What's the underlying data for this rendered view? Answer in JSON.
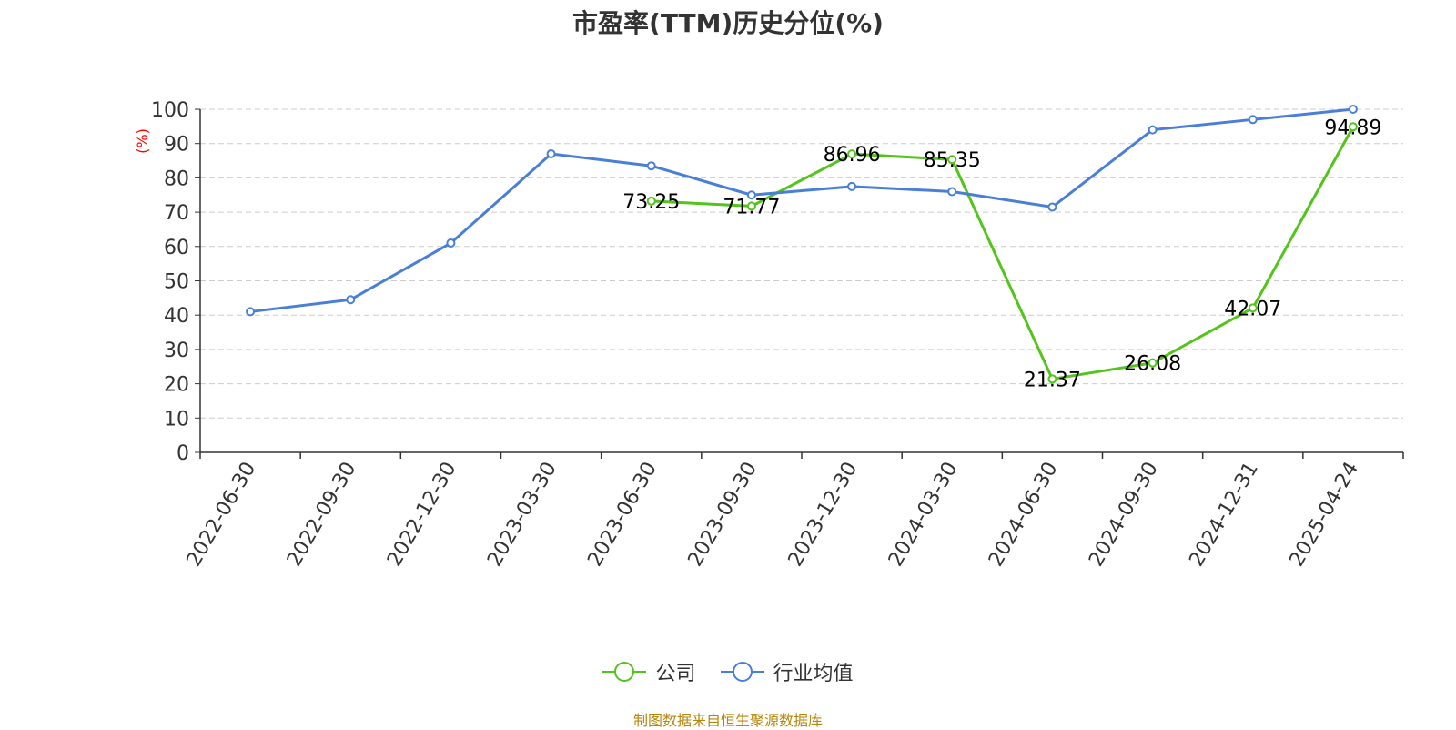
{
  "title": "市盈率(TTM)历史分位(%)",
  "footer": "制图数据来自恒生聚源数据库",
  "colors": {
    "company": "#52c41a",
    "industry": "#4a7fd8",
    "axis": "#333333",
    "grid": "#cccccc",
    "unit": "#ff0000",
    "footer": "#b8860b"
  },
  "chart_data": {
    "type": "line",
    "title": "市盈率(TTM)历史分位(%)",
    "ylabel": "(%)",
    "xlabel": "",
    "ylim": [
      0,
      100
    ],
    "yticks": [
      0,
      10,
      20,
      30,
      40,
      50,
      60,
      70,
      80,
      90,
      100
    ],
    "grid": true,
    "legend_position": "bottom",
    "categories": [
      "2022-06-30",
      "2022-09-30",
      "2022-12-30",
      "2023-03-30",
      "2023-06-30",
      "2023-09-30",
      "2023-12-30",
      "2024-03-30",
      "2024-06-30",
      "2024-09-30",
      "2024-12-31",
      "2025-04-24"
    ],
    "series": [
      {
        "name": "公司",
        "color": "#52c41a",
        "values": [
          null,
          null,
          null,
          null,
          73.25,
          71.77,
          86.96,
          85.35,
          21.37,
          26.08,
          42.07,
          94.89
        ],
        "labels": [
          null,
          null,
          null,
          null,
          "73.25",
          "71.77",
          "86.96",
          "85.35",
          "21.37",
          "26.08",
          "42.07",
          "94.89"
        ]
      },
      {
        "name": "行业均值",
        "color": "#4a7fd8",
        "values": [
          41,
          44.5,
          61,
          87,
          83.5,
          75,
          77.5,
          76,
          71.5,
          94,
          97,
          100
        ]
      }
    ]
  }
}
